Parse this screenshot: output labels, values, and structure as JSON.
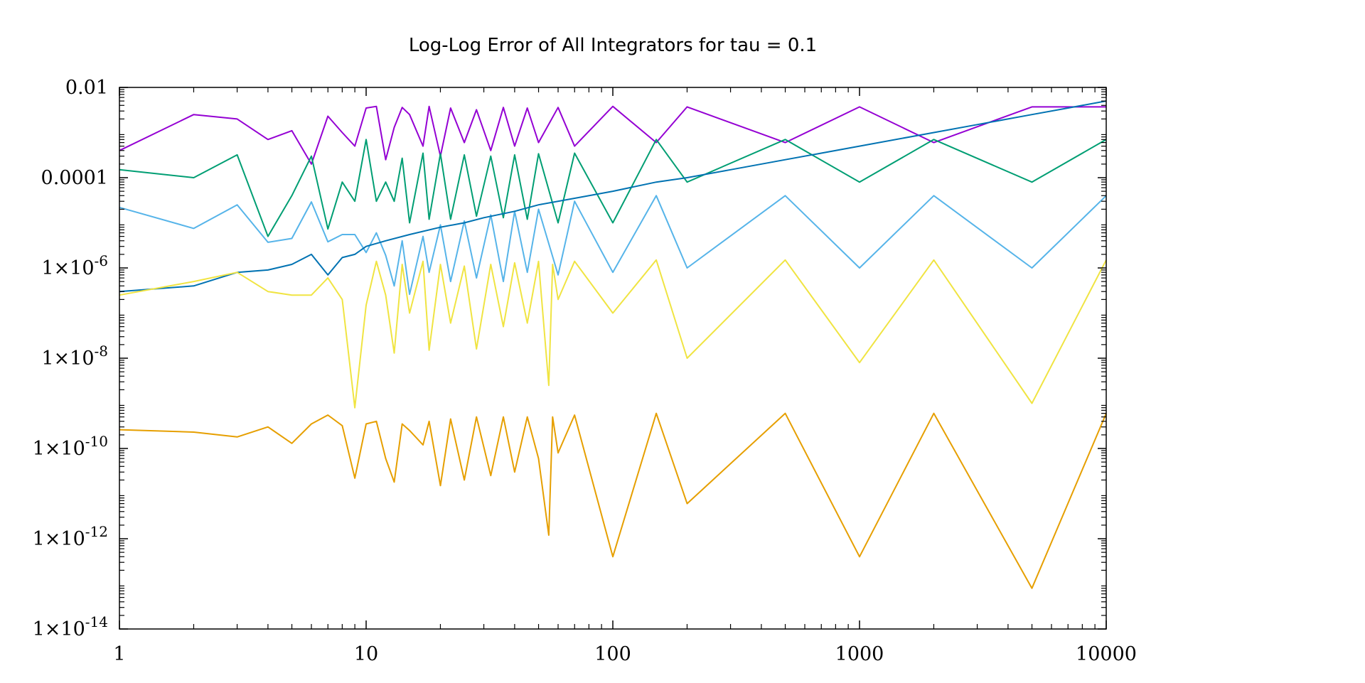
{
  "chart_data": {
    "type": "line",
    "title": "Log-Log Error of All Integrators for tau = 0.1",
    "xlabel": "",
    "ylabel": "",
    "x_scale": "log",
    "y_scale": "log",
    "xlim": [
      1,
      10000
    ],
    "ylim": [
      1e-14,
      0.01
    ],
    "grid": false,
    "legend": "none",
    "x_ticks": [
      {
        "value": 1,
        "label": "1"
      },
      {
        "value": 10,
        "label": "10"
      },
      {
        "value": 100,
        "label": "100"
      },
      {
        "value": 1000,
        "label": "1000"
      },
      {
        "value": 10000,
        "label": "10000"
      }
    ],
    "y_ticks": [
      {
        "value": 0.01,
        "mantissa": "0.01",
        "exponent": ""
      },
      {
        "value": 0.0001,
        "mantissa": "0.0001",
        "exponent": ""
      },
      {
        "value": 1e-06,
        "mantissa": "1×10",
        "exponent": "-6"
      },
      {
        "value": 1e-08,
        "mantissa": "1×10",
        "exponent": "-8"
      },
      {
        "value": 1e-10,
        "mantissa": "1×10",
        "exponent": "-10"
      },
      {
        "value": 1e-12,
        "mantissa": "1×10",
        "exponent": "-12"
      },
      {
        "value": 1e-14,
        "mantissa": "1×10",
        "exponent": "-14"
      }
    ],
    "series": [
      {
        "color": "#9400D3",
        "x": [
          1,
          2,
          3,
          4,
          5,
          6,
          7,
          8,
          9,
          10,
          11,
          12,
          13,
          14,
          15,
          17,
          18,
          20,
          22,
          25,
          28,
          32,
          36,
          40,
          45,
          50,
          60,
          70,
          100,
          150,
          200,
          500,
          1000,
          2000,
          5000,
          10000
        ],
        "y": [
          0.0004,
          0.0025,
          0.002,
          0.0007,
          0.0011,
          0.0002,
          0.0023,
          0.001,
          0.0005,
          0.0035,
          0.0038,
          0.00025,
          0.0013,
          0.0036,
          0.0025,
          0.0005,
          0.0038,
          0.0003,
          0.0035,
          0.0006,
          0.0032,
          0.0004,
          0.0036,
          0.0005,
          0.0035,
          0.0006,
          0.0036,
          0.0005,
          0.0038,
          0.0006,
          0.0037,
          0.0006,
          0.0037,
          0.0006,
          0.0037,
          0.0037
        ]
      },
      {
        "color": "#009E73",
        "x": [
          1,
          2,
          3,
          4,
          5,
          6,
          7,
          8,
          9,
          10,
          11,
          12,
          13,
          14,
          15,
          17,
          18,
          20,
          22,
          25,
          28,
          32,
          36,
          40,
          45,
          50,
          60,
          70,
          100,
          150,
          200,
          500,
          1000,
          2000,
          5000,
          10000
        ],
        "y": [
          0.00015,
          0.0001,
          0.00032,
          5e-06,
          4e-05,
          0.0003,
          7.3e-06,
          8e-05,
          3e-05,
          0.0007,
          3e-05,
          8e-05,
          3e-05,
          0.00027,
          1e-05,
          0.00035,
          1.2e-05,
          0.00034,
          1.2e-05,
          0.00032,
          1.4e-05,
          0.0003,
          1.3e-05,
          0.00032,
          1.2e-05,
          0.00034,
          1e-05,
          0.00035,
          1e-05,
          0.0007,
          8e-05,
          0.0007,
          8e-05,
          0.0007,
          8e-05,
          0.0007
        ]
      },
      {
        "color": "#56B4E9",
        "x": [
          1,
          2,
          3,
          4,
          5,
          6,
          7,
          8,
          9,
          10,
          11,
          12,
          13,
          14,
          15,
          17,
          18,
          20,
          22,
          25,
          28,
          32,
          36,
          40,
          45,
          50,
          60,
          70,
          100,
          150,
          200,
          500,
          1000,
          2000,
          5000,
          10000
        ],
        "y": [
          2.2e-05,
          7.5e-06,
          2.5e-05,
          3.7e-06,
          4.5e-06,
          2.9e-05,
          3.8e-06,
          5.5e-06,
          5.5e-06,
          2.2e-06,
          6e-06,
          1.9e-06,
          4e-07,
          4e-06,
          2.6e-07,
          5e-06,
          8e-07,
          9e-06,
          5e-07,
          1.1e-05,
          6e-07,
          1.5e-05,
          5e-07,
          1.8e-05,
          8e-07,
          2e-05,
          7e-07,
          3e-05,
          8e-07,
          4e-05,
          1e-06,
          4e-05,
          1e-06,
          4e-05,
          1e-06,
          4e-05
        ]
      },
      {
        "color": "#0072B2",
        "x": [
          1,
          2,
          3,
          4,
          5,
          6,
          7,
          8,
          9,
          10,
          12,
          15,
          20,
          25,
          30,
          40,
          50,
          70,
          100,
          150,
          200,
          300,
          500,
          700,
          1000,
          2000,
          3000,
          5000,
          7000,
          10000
        ],
        "y": [
          3e-07,
          4e-07,
          8e-07,
          9e-07,
          1.2e-06,
          2e-06,
          7e-07,
          1.7e-06,
          2e-06,
          3e-06,
          4e-06,
          5.5e-06,
          8e-06,
          1e-05,
          1.3e-05,
          1.8e-05,
          2.5e-05,
          3.5e-05,
          5e-05,
          8e-05,
          0.0001,
          0.00015,
          0.00025,
          0.00035,
          0.0005,
          0.001,
          0.0015,
          0.0025,
          0.0035,
          0.005
        ]
      },
      {
        "color": "#F0E442",
        "x": [
          1,
          2,
          3,
          4,
          5,
          6,
          7,
          8,
          9,
          10,
          11,
          12,
          13,
          14,
          15,
          17,
          18,
          20,
          22,
          25,
          28,
          32,
          36,
          40,
          45,
          50,
          55,
          57,
          60,
          70,
          100,
          150,
          200,
          500,
          1000,
          2000,
          5000,
          10000
        ],
        "y": [
          2.5e-07,
          5e-07,
          8e-07,
          3e-07,
          2.5e-07,
          2.5e-07,
          6e-07,
          2e-07,
          8e-10,
          1.5e-07,
          1.4e-06,
          2.5e-07,
          1.3e-08,
          1.2e-06,
          1e-07,
          1.4e-06,
          1.5e-08,
          1.2e-06,
          6e-08,
          1.1e-06,
          1.6e-08,
          1.2e-06,
          5e-08,
          1.3e-06,
          6e-08,
          1.4e-06,
          2.5e-09,
          1.2e-06,
          2e-07,
          1.4e-06,
          1e-07,
          1.5e-06,
          1e-08,
          1.5e-06,
          8e-09,
          1.5e-06,
          1e-09,
          1.5e-06
        ]
      },
      {
        "color": "#E69F00",
        "x": [
          1,
          2,
          3,
          4,
          5,
          6,
          7,
          8,
          9,
          10,
          11,
          12,
          13,
          14,
          15,
          17,
          18,
          20,
          22,
          25,
          28,
          32,
          36,
          40,
          45,
          50,
          55,
          57,
          60,
          70,
          100,
          150,
          200,
          500,
          1000,
          2000,
          5000,
          10000
        ],
        "y": [
          2.6e-10,
          2.3e-10,
          1.8e-10,
          3e-10,
          1.3e-10,
          3.5e-10,
          5.5e-10,
          3.2e-10,
          2.2e-11,
          3.5e-10,
          4e-10,
          6e-11,
          1.8e-11,
          3.5e-10,
          2.5e-10,
          1.2e-10,
          4e-10,
          1.5e-11,
          4.5e-10,
          2e-11,
          5e-10,
          2.5e-11,
          5e-10,
          3e-11,
          5e-10,
          6e-11,
          1.2e-12,
          5e-10,
          8e-11,
          5.5e-10,
          4e-13,
          6e-10,
          6e-12,
          6e-10,
          4e-13,
          6e-10,
          8e-14,
          6e-10
        ]
      }
    ]
  }
}
